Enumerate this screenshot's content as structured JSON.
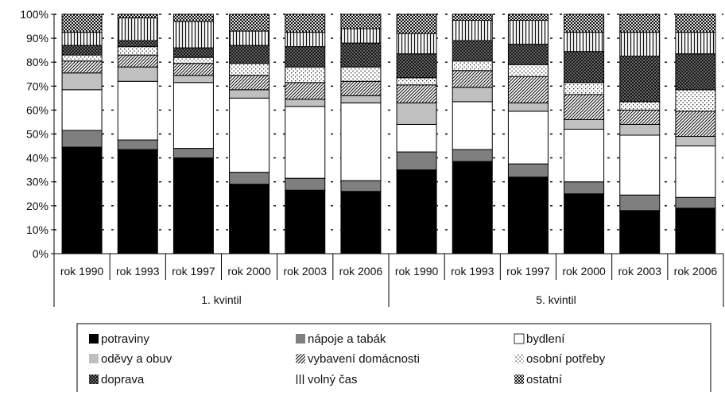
{
  "chart_data": {
    "type": "bar",
    "stacked": true,
    "percent_stacked": true,
    "groups": [
      {
        "label": "1. kvintil",
        "categories": [
          "rok 1990",
          "rok 1993",
          "rok 1997",
          "rok 2000",
          "rok 2003",
          "rok 2006"
        ]
      },
      {
        "label": "5. kvintil",
        "categories": [
          "rok 1990",
          "rok 1993",
          "rok 1997",
          "rok 2000",
          "rok 2003",
          "rok 2006"
        ]
      }
    ],
    "ylim": [
      0,
      100
    ],
    "yticks": [
      "0%",
      "10%",
      "20%",
      "30%",
      "40%",
      "50%",
      "60%",
      "70%",
      "80%",
      "90%",
      "100%"
    ],
    "grid": "dashed-horizontal",
    "legend_position": "bottom",
    "series": [
      {
        "name": "potraviny",
        "values": [
          44.5,
          43.5,
          40,
          29,
          26.5,
          26,
          35,
          38.5,
          32,
          25,
          18,
          19
        ],
        "color": "#000000",
        "pattern": "solid-black"
      },
      {
        "name": "nápoje a tabák",
        "values": [
          7,
          4,
          4,
          5,
          5,
          4.5,
          7.5,
          5,
          5.5,
          5,
          6.5,
          4.5
        ],
        "color": "#808080",
        "pattern": "solid-darkgray"
      },
      {
        "name": "bydlení",
        "values": [
          17,
          24.5,
          27.5,
          31,
          30,
          32.5,
          11.5,
          20,
          22,
          22,
          25,
          21.5
        ],
        "color": "#ffffff",
        "pattern": "solid-white"
      },
      {
        "name": "oděvy a obuv",
        "values": [
          7,
          6,
          3,
          3.5,
          3,
          3,
          9,
          6,
          3.5,
          4,
          4.5,
          4
        ],
        "color": "#bfbfbf",
        "pattern": "solid-lightgray"
      },
      {
        "name": "vybavení domácnosti",
        "values": [
          5,
          5,
          5,
          6,
          7,
          6,
          7.5,
          7,
          11,
          10.5,
          6,
          10.5
        ],
        "color": "#ffffff",
        "pattern": "diagonal-hatch"
      },
      {
        "name": "osobní potřeby",
        "values": [
          2.5,
          3.5,
          2.5,
          5,
          6.5,
          6,
          3,
          4,
          5,
          5,
          3.5,
          9
        ],
        "color": "#ffffff",
        "pattern": "dots"
      },
      {
        "name": "doprava",
        "values": [
          4,
          2.5,
          4,
          7.5,
          8.5,
          10,
          10,
          8.5,
          8.5,
          13,
          19,
          15
        ],
        "color": "#555555",
        "pattern": "crosshatch"
      },
      {
        "name": "volný čas",
        "values": [
          5.5,
          9.5,
          11,
          6,
          6,
          6,
          8.5,
          8.5,
          10,
          8,
          10,
          9
        ],
        "color": "#ffffff",
        "pattern": "vertical-lines"
      },
      {
        "name": "ostatní",
        "values": [
          7.5,
          1.5,
          3,
          7,
          7.5,
          6,
          8,
          2.5,
          2.5,
          7.5,
          7.5,
          7.5
        ],
        "color": "#222222",
        "pattern": "checker"
      }
    ]
  }
}
